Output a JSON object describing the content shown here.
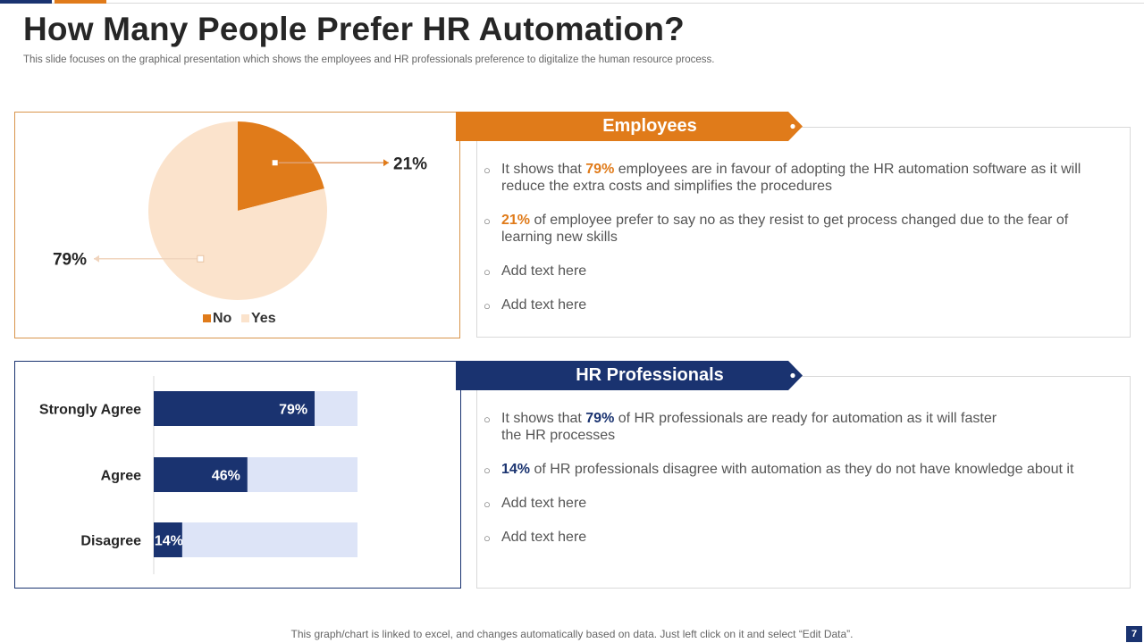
{
  "colors": {
    "navy": "#1a3370",
    "orange": "#e07b1a",
    "peach": "#fbe3cc",
    "light_blue": "#dde4f7"
  },
  "header": {
    "title": "How Many People Prefer HR Automation?",
    "subtitle": "This slide focuses on the graphical presentation which shows the employees and HR professionals preference to digitalize the human resource process."
  },
  "employees": {
    "heading": "Employees",
    "bullets": [
      {
        "pre": "It shows that ",
        "highlight": "79%",
        "post": " employees are in favour of adopting the HR automation software as it will reduce the extra costs and simplifies the procedures"
      },
      {
        "pre": "",
        "highlight": "21%",
        "post": " of employee prefer to say no as they resist to get process changed due to the fear of learning new skills"
      },
      {
        "pre": "Add text here",
        "highlight": "",
        "post": ""
      },
      {
        "pre": "Add text here",
        "highlight": "",
        "post": ""
      }
    ]
  },
  "hr_professionals": {
    "heading": "HR Professionals",
    "bullets": [
      {
        "pre": "It shows that ",
        "highlight": "79%",
        "post": " of HR professionals are ready for automation as it will faster the HR processes"
      },
      {
        "pre": "",
        "highlight": "14%",
        "post": " of HR professionals disagree with automation as they do not have knowledge about it"
      },
      {
        "pre": "Add text here",
        "highlight": "",
        "post": ""
      },
      {
        "pre": "Add text here",
        "highlight": "",
        "post": ""
      }
    ]
  },
  "chart_data": [
    {
      "type": "pie",
      "title": "",
      "legend_position": "bottom",
      "slices": [
        {
          "name": "No",
          "value": 21,
          "label": "21%",
          "color": "#e07b1a"
        },
        {
          "name": "Yes",
          "value": 79,
          "label": "79%",
          "color": "#fbe3cc"
        }
      ]
    },
    {
      "type": "bar",
      "orientation": "horizontal",
      "stacked": true,
      "title": "",
      "categories": [
        "Strongly Agree",
        "Agree",
        "Disagree"
      ],
      "series": [
        {
          "values": [
            79,
            46,
            14
          ],
          "labels": [
            "79%",
            "46%",
            "14%"
          ],
          "color": "#1a3370"
        },
        {
          "values": [
            21,
            54,
            86
          ],
          "color": "#dde4f7"
        }
      ],
      "xlim": [
        0,
        100
      ]
    }
  ],
  "footer": {
    "note": "This graph/chart is linked to excel, and changes automatically based on data. Just left click on it and select “Edit Data”.",
    "page_number": "7"
  }
}
